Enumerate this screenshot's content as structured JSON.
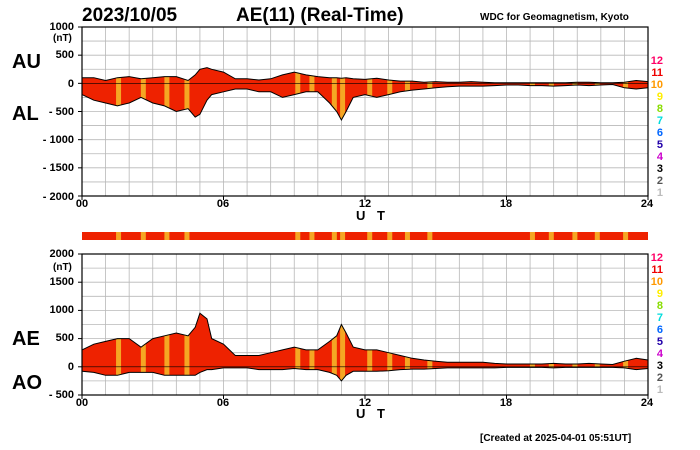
{
  "header": {
    "date": "2023/10/05",
    "title": "AE(11) (Real-Time)",
    "source": "WDC for Geomagnetism, Kyoto"
  },
  "footer": {
    "created": "[Created at 2025-04-01 05:51UT]"
  },
  "colors": {
    "fill": "#ee2200",
    "band": "#f5a623",
    "grid": "#b8b8b8",
    "levels": [
      "#ff0066",
      "#ee0000",
      "#ff9900",
      "#ffee00",
      "#88dd00",
      "#00cc44",
      "#00dddd",
      "#0066ff",
      "#2200aa",
      "#cc00cc",
      "#000000",
      "#555555",
      "#bbbbbb"
    ]
  },
  "level_labels": [
    "12",
    "11",
    "10",
    "9",
    "8",
    "7",
    "6",
    "5",
    "4",
    "3",
    "2",
    "1"
  ],
  "chart_data": [
    {
      "type": "area",
      "title": "AE(11) (Real-Time)",
      "panel": "AU/AL",
      "series_labels": [
        "AU",
        "AL"
      ],
      "xlabel": "U T",
      "ylabel": "(nT)",
      "xlim": [
        0,
        24
      ],
      "ylim": [
        -2000,
        1000
      ],
      "xticks": [
        "00",
        "06",
        "12",
        "18",
        "24"
      ],
      "yticks": [
        "1000",
        "500",
        "0",
        "- 500",
        "- 1000",
        "- 1500",
        "- 2000"
      ],
      "ytick_values": [
        1000,
        500,
        0,
        -500,
        -1000,
        -1500,
        -2000
      ],
      "x": [
        0,
        0.5,
        1,
        1.5,
        2,
        2.5,
        3,
        3.5,
        4,
        4.5,
        4.8,
        5,
        5.3,
        5.5,
        6,
        6.5,
        7,
        7.5,
        8,
        8.5,
        9,
        9.5,
        10,
        10.5,
        10.8,
        11,
        11.2,
        11.5,
        12,
        12.5,
        13,
        13.5,
        14,
        14.5,
        15,
        15.5,
        16,
        16.5,
        17,
        17.5,
        18,
        18.5,
        19,
        19.5,
        20,
        20.5,
        21,
        21.5,
        22,
        22.5,
        23,
        23.5,
        24
      ],
      "upper": [
        100,
        100,
        50,
        100,
        120,
        80,
        100,
        120,
        120,
        50,
        150,
        250,
        280,
        250,
        200,
        80,
        80,
        60,
        80,
        150,
        200,
        150,
        120,
        100,
        100,
        90,
        100,
        80,
        70,
        90,
        60,
        40,
        40,
        20,
        30,
        20,
        20,
        30,
        20,
        10,
        10,
        10,
        10,
        10,
        10,
        10,
        20,
        20,
        10,
        10,
        20,
        50,
        30
      ],
      "lower": [
        -200,
        -300,
        -350,
        -400,
        -350,
        -250,
        -350,
        -400,
        -500,
        -450,
        -600,
        -550,
        -300,
        -200,
        -150,
        -100,
        -100,
        -150,
        -150,
        -250,
        -200,
        -150,
        -150,
        -350,
        -500,
        -650,
        -500,
        -250,
        -200,
        -250,
        -200,
        -150,
        -120,
        -100,
        -80,
        -60,
        -50,
        -50,
        -50,
        -40,
        -30,
        -30,
        -40,
        -40,
        -50,
        -40,
        -30,
        -40,
        -30,
        -20,
        -80,
        -100,
        -80
      ]
    },
    {
      "type": "area",
      "title": "AE(11) (Real-Time)",
      "panel": "AE/AO",
      "series_labels": [
        "AE",
        "AO"
      ],
      "xlabel": "U T",
      "ylabel": "(nT)",
      "xlim": [
        0,
        24
      ],
      "ylim": [
        -500,
        2000
      ],
      "xticks": [
        "00",
        "06",
        "12",
        "18",
        "24"
      ],
      "yticks": [
        "2000",
        "1500",
        "1000",
        "500",
        "0",
        "- 500"
      ],
      "ytick_values": [
        2000,
        1500,
        1000,
        500,
        0,
        -500
      ],
      "x": [
        0,
        0.5,
        1,
        1.5,
        2,
        2.5,
        3,
        3.5,
        4,
        4.5,
        4.8,
        5,
        5.3,
        5.5,
        6,
        6.5,
        7,
        7.5,
        8,
        8.5,
        9,
        9.5,
        10,
        10.5,
        10.8,
        11,
        11.2,
        11.5,
        12,
        12.5,
        13,
        13.5,
        14,
        14.5,
        15,
        15.5,
        16,
        16.5,
        17,
        17.5,
        18,
        18.5,
        19,
        19.5,
        20,
        20.5,
        21,
        21.5,
        22,
        22.5,
        23,
        23.5,
        24
      ],
      "upper": [
        300,
        400,
        450,
        500,
        500,
        350,
        500,
        550,
        600,
        550,
        700,
        950,
        850,
        500,
        400,
        200,
        200,
        200,
        250,
        300,
        350,
        300,
        300,
        450,
        550,
        750,
        600,
        350,
        300,
        300,
        250,
        200,
        150,
        120,
        100,
        80,
        80,
        80,
        80,
        60,
        50,
        50,
        50,
        50,
        60,
        50,
        50,
        60,
        50,
        40,
        100,
        150,
        120
      ],
      "lower": [
        -80,
        -100,
        -150,
        -150,
        -100,
        -100,
        -100,
        -150,
        -150,
        -150,
        -150,
        -100,
        -50,
        -50,
        -20,
        -20,
        -20,
        -50,
        -50,
        -50,
        -30,
        -50,
        -50,
        -100,
        -150,
        -250,
        -150,
        -80,
        -80,
        -80,
        -70,
        -50,
        -40,
        -40,
        -30,
        -20,
        -20,
        -20,
        -20,
        -20,
        -10,
        -10,
        -10,
        -10,
        -20,
        -10,
        -10,
        -10,
        -10,
        -10,
        -20,
        -50,
        -30
      ]
    }
  ],
  "band_hours": [
    1.55,
    2.6,
    3.6,
    4.45,
    9.15,
    9.75,
    10.7,
    11.05,
    12.2,
    13.05,
    13.8,
    14.75,
    19.1,
    19.9,
    20.9,
    21.85,
    23.05
  ]
}
